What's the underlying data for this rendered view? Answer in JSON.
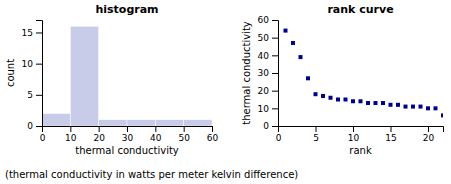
{
  "chart_data": [
    {
      "type": "histogram",
      "title": "histogram",
      "x_label": "thermal conductivity",
      "y_label": "count",
      "bins": [
        0,
        10,
        20,
        30,
        40,
        50,
        60
      ],
      "values": [
        2,
        16,
        1,
        1,
        1,
        1
      ],
      "color": "#c8cce8",
      "xlim": [
        0,
        60
      ],
      "ylim": [
        0,
        17
      ],
      "xticks": [
        0,
        10,
        20,
        30,
        40,
        50,
        60
      ],
      "yticks": [
        0,
        5,
        10,
        15
      ]
    },
    {
      "type": "scatter",
      "title": "rank curve",
      "x_label": "rank",
      "y_label": "thermal conductivity",
      "x": [
        1,
        2,
        3,
        4,
        5,
        6,
        7,
        8,
        9,
        10,
        11,
        12,
        13,
        14,
        15,
        16,
        17,
        18,
        19,
        20,
        21,
        22
      ],
      "y": [
        54,
        47,
        39,
        27,
        18,
        17,
        16,
        15,
        15,
        14,
        14,
        13,
        13,
        13,
        12,
        12,
        11,
        11,
        11,
        10,
        10,
        6
      ],
      "color": "#00008b",
      "marker": "square",
      "xlim": [
        0,
        22
      ],
      "ylim": [
        0,
        60
      ],
      "xticks": [
        0,
        5,
        10,
        15,
        20
      ],
      "yticks": [
        0,
        10,
        20,
        30,
        40,
        50,
        60
      ]
    }
  ],
  "caption": "(thermal conductivity in watts per meter kelvin difference)"
}
